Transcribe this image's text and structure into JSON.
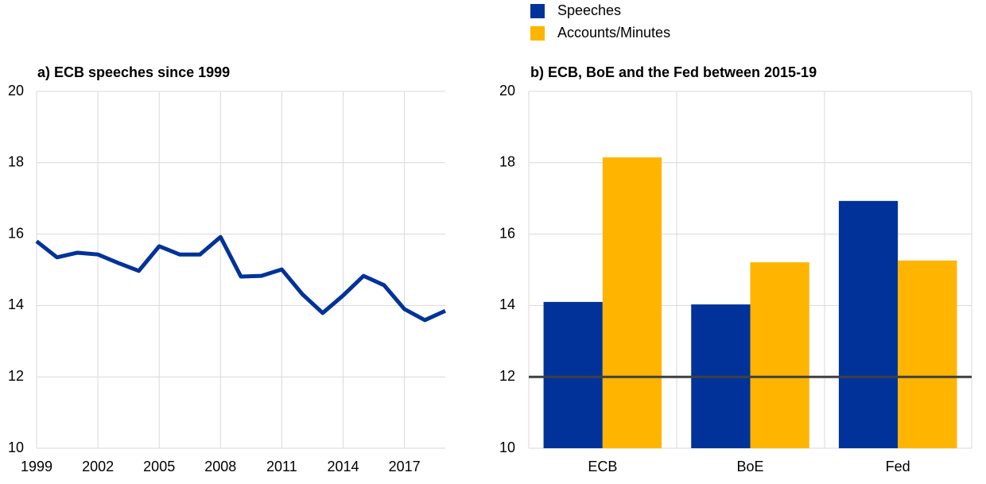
{
  "chart_data": [
    {
      "type": "line",
      "title": "a) ECB speeches since 1999",
      "x": [
        1999,
        2000,
        2001,
        2002,
        2003,
        2004,
        2005,
        2006,
        2007,
        2008,
        2009,
        2010,
        2011,
        2012,
        2013,
        2014,
        2015,
        2016,
        2017,
        2018,
        2019
      ],
      "values": [
        15.8,
        15.35,
        15.48,
        15.43,
        15.19,
        14.97,
        15.66,
        15.43,
        15.43,
        15.92,
        14.81,
        14.83,
        15.01,
        14.32,
        13.79,
        14.28,
        14.83,
        14.57,
        13.9,
        13.59,
        13.85
      ],
      "color": "#003299",
      "xlim": [
        1999,
        2019
      ],
      "xticks": [
        1999,
        2002,
        2005,
        2008,
        2011,
        2014,
        2017
      ],
      "ylim": [
        10,
        20
      ],
      "yticks": [
        10,
        12,
        14,
        16,
        18,
        20
      ],
      "grid": true
    },
    {
      "type": "bar",
      "title": "b) ECB, BoE and the Fed between 2015-19",
      "categories": [
        "ECB",
        "BoE",
        "Fed"
      ],
      "series": [
        {
          "name": "Speeches",
          "color": "#003299",
          "values": [
            14.1,
            14.03,
            16.93
          ]
        },
        {
          "name": "Accounts/Minutes",
          "color": "#ffb400",
          "values": [
            18.15,
            15.21,
            15.26
          ]
        }
      ],
      "ylim": [
        10,
        20
      ],
      "yticks": [
        10,
        12,
        14,
        16,
        18,
        20
      ],
      "grid": true,
      "reference_line": 12,
      "legend": "top"
    }
  ]
}
